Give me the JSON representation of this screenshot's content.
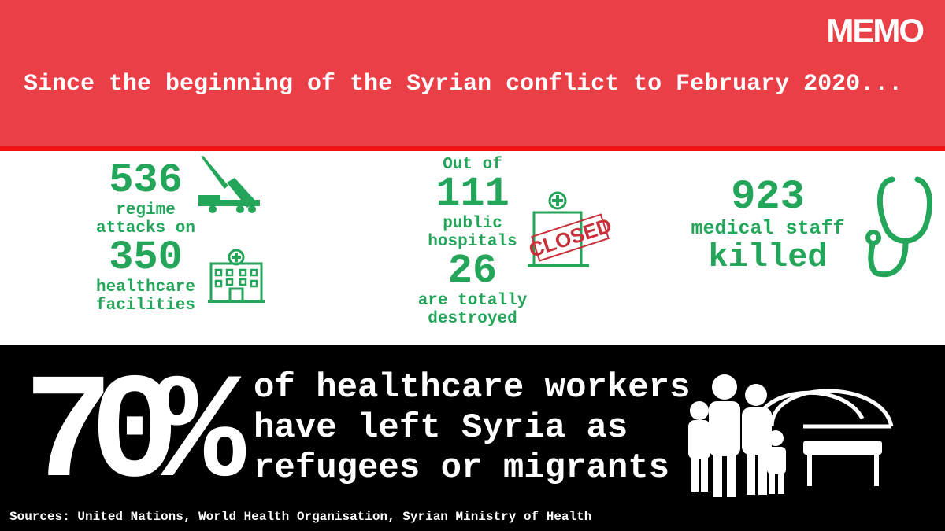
{
  "logo": "MEMO",
  "headline": "Since the beginning of the Syrian conflict to February 2020...",
  "stat1": {
    "number": "536",
    "line1": "regime",
    "line2": "attacks on",
    "number2": "350",
    "line3": "healthcare",
    "line4": "facilities"
  },
  "stat2": {
    "intro": "Out of",
    "number": "111",
    "line1": "public",
    "line2": "hospitals",
    "number2": "26",
    "line3": "are totally",
    "line4": "destroyed",
    "stamp": "CLOSED"
  },
  "stat3": {
    "number": "923",
    "line1": "medical staff",
    "line2": "killed"
  },
  "bottom": {
    "percent": "70%",
    "lines": [
      "of healthcare workers",
      "have left Syria as",
      "refugees or migrants"
    ]
  },
  "sources": "Sources: United Nations, World Health Organisation, Syrian Ministry of Health",
  "colors": {
    "red": "#ea3f47",
    "stripe": "#f01212",
    "green": "#23a55a",
    "black": "#000000"
  }
}
